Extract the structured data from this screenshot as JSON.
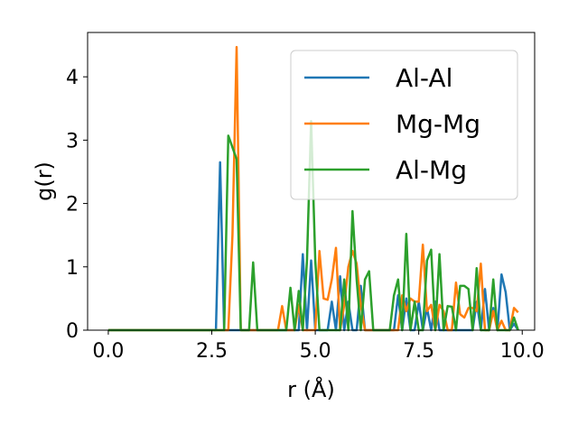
{
  "chart_data": {
    "type": "line",
    "xlabel": "r (Å)",
    "ylabel": "g(r)",
    "xlim": [
      -0.5,
      10.3
    ],
    "ylim": [
      0,
      4.7
    ],
    "xticks": [
      0.0,
      2.5,
      5.0,
      7.5,
      10.0
    ],
    "xtick_labels": [
      "0.0",
      "2.5",
      "5.0",
      "7.5",
      "10.0"
    ],
    "yticks": [
      0,
      1,
      2,
      3,
      4
    ],
    "ytick_labels": [
      "0",
      "1",
      "2",
      "3",
      "4"
    ],
    "grid": false,
    "legend_position": "top-right",
    "series": [
      {
        "name": "Al-Al",
        "color": "#1f77b4",
        "x": [
          0.0,
          2.6,
          2.7,
          2.8,
          2.9,
          4.6,
          4.7,
          4.8,
          4.9,
          5.0,
          5.1,
          5.2,
          5.3,
          5.4,
          5.5,
          5.6,
          5.7,
          5.8,
          5.9,
          6.0,
          6.1,
          6.2,
          6.3,
          6.9,
          7.0,
          7.1,
          7.2,
          7.3,
          7.4,
          7.5,
          7.6,
          7.7,
          7.8,
          7.9,
          8.0,
          8.1,
          8.8,
          8.9,
          9.0,
          9.1,
          9.2,
          9.3,
          9.4,
          9.5,
          9.6,
          9.7,
          9.8,
          9.9
        ],
        "y": [
          0.0,
          0.0,
          2.65,
          0.0,
          0.0,
          0.0,
          1.2,
          0.0,
          1.1,
          0.0,
          0.0,
          0.0,
          0.0,
          0.45,
          0.0,
          0.85,
          0.0,
          0.45,
          0.0,
          0.0,
          0.7,
          0.0,
          0.0,
          0.0,
          0.55,
          0.0,
          0.5,
          0.0,
          0.0,
          0.45,
          0.0,
          0.35,
          0.0,
          0.45,
          0.0,
          0.0,
          0.0,
          0.45,
          0.0,
          0.65,
          0.0,
          0.35,
          0.0,
          0.88,
          0.6,
          0.0,
          0.1,
          0.0
        ]
      },
      {
        "name": "Mg-Mg",
        "color": "#ff7f0e",
        "x": [
          0.0,
          2.9,
          3.0,
          3.1,
          3.2,
          3.3,
          4.1,
          4.2,
          4.3,
          4.4,
          4.5,
          4.6,
          4.7,
          4.8,
          4.9,
          5.0,
          5.1,
          5.2,
          5.3,
          5.4,
          5.5,
          5.6,
          5.7,
          5.8,
          5.9,
          6.0,
          6.1,
          6.2,
          6.3,
          6.9,
          7.0,
          7.1,
          7.2,
          7.3,
          7.4,
          7.5,
          7.6,
          7.7,
          7.8,
          7.9,
          8.0,
          8.1,
          8.2,
          8.3,
          8.4,
          8.5,
          8.6,
          8.7,
          8.8,
          8.9,
          9.0,
          9.1,
          9.2,
          9.3,
          9.4,
          9.5,
          9.6,
          9.7,
          9.8,
          9.9
        ],
        "y": [
          0.0,
          0.0,
          1.5,
          4.47,
          0.0,
          0.0,
          0.0,
          0.38,
          0.0,
          0.0,
          0.0,
          0.4,
          0.0,
          0.0,
          0.0,
          0.0,
          1.25,
          0.5,
          0.48,
          0.8,
          1.3,
          0.0,
          0.4,
          1.0,
          1.25,
          1.05,
          0.4,
          0.0,
          0.0,
          0.0,
          0.0,
          0.55,
          0.3,
          0.5,
          0.45,
          0.45,
          1.35,
          0.3,
          0.4,
          0.0,
          0.4,
          0.3,
          0.0,
          0.0,
          0.75,
          0.25,
          0.2,
          0.35,
          0.35,
          0.3,
          1.05,
          0.0,
          0.0,
          0.3,
          0.0,
          0.15,
          0.0,
          0.0,
          0.35,
          0.28
        ]
      },
      {
        "name": "Al-Mg",
        "color": "#2ca02c",
        "x": [
          0.0,
          2.7,
          2.8,
          2.9,
          3.1,
          3.2,
          3.3,
          3.4,
          3.5,
          3.6,
          4.2,
          4.3,
          4.4,
          4.5,
          4.6,
          4.7,
          4.8,
          4.9,
          5.0,
          5.1,
          5.2,
          5.3,
          5.4,
          5.5,
          5.6,
          5.7,
          5.8,
          5.9,
          6.0,
          6.1,
          6.2,
          6.3,
          6.4,
          6.5,
          6.6,
          6.7,
          6.8,
          6.9,
          7.0,
          7.1,
          7.2,
          7.3,
          7.4,
          7.5,
          7.6,
          7.7,
          7.8,
          7.9,
          8.0,
          8.1,
          8.2,
          8.3,
          8.4,
          8.5,
          8.6,
          8.7,
          8.8,
          8.9,
          9.0,
          9.1,
          9.2,
          9.3,
          9.4,
          9.5,
          9.6,
          9.7,
          9.8,
          9.9
        ],
        "y": [
          0.0,
          0.0,
          0.0,
          3.07,
          2.7,
          0.0,
          0.0,
          0.0,
          1.07,
          0.0,
          0.0,
          0.0,
          0.67,
          0.0,
          0.62,
          0.0,
          1.1,
          3.3,
          1.1,
          0.0,
          0.0,
          0.0,
          0.0,
          0.0,
          0.0,
          0.8,
          0.0,
          1.88,
          0.8,
          0.0,
          0.8,
          0.93,
          0.0,
          0.0,
          0.0,
          0.0,
          0.0,
          0.55,
          0.8,
          0.0,
          1.52,
          0.0,
          0.45,
          0.0,
          0.0,
          1.1,
          1.27,
          0.0,
          1.2,
          0.0,
          0.38,
          0.37,
          0.0,
          0.7,
          0.7,
          0.65,
          0.0,
          0.98,
          0.0,
          0.0,
          0.0,
          0.8,
          0.0,
          0.0,
          0.0,
          0.0,
          0.2,
          0.0
        ]
      }
    ]
  }
}
